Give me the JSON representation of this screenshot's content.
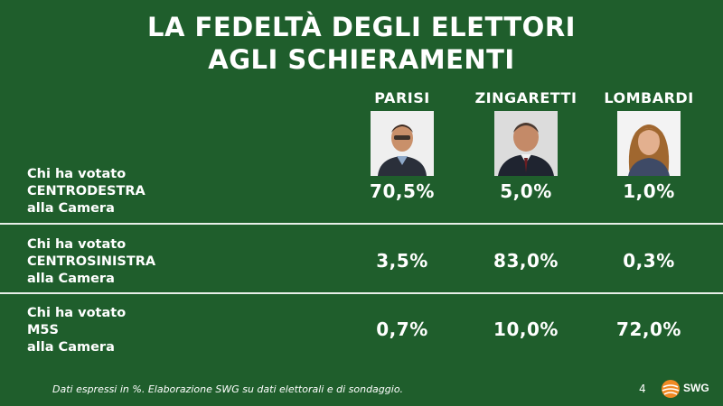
{
  "title": {
    "line1": "LA FEDELTÀ DEGLI ELETTORI",
    "line2": "AGLI SCHIERAMENTI"
  },
  "candidates": [
    {
      "name": "PARISI"
    },
    {
      "name": "ZINGARETTI"
    },
    {
      "name": "LOMBARDI"
    }
  ],
  "rows": [
    {
      "label_l1": "Chi ha votato",
      "label_l2": "CENTRODESTRA",
      "label_l3": "alla Camera",
      "values": [
        "70,5%",
        "5,0%",
        "1,0%"
      ]
    },
    {
      "label_l1": "Chi ha votato",
      "label_l2": "CENTROSINISTRA",
      "label_l3": "alla Camera",
      "values": [
        "3,5%",
        "83,0%",
        "0,3%"
      ]
    },
    {
      "label_l1": "Chi ha votato",
      "label_l2": "M5S",
      "label_l3": "alla Camera",
      "values": [
        "0,7%",
        "10,0%",
        "72,0%"
      ]
    }
  ],
  "footer": {
    "note": "Dati espressi in %. Elaborazione SWG su dati elettorali e di sondaggio.",
    "page": "4",
    "logo_text": "SWG"
  },
  "colors": {
    "background": "#1f5e2c",
    "text": "#ffffff",
    "logo_orange": "#f08a24"
  }
}
